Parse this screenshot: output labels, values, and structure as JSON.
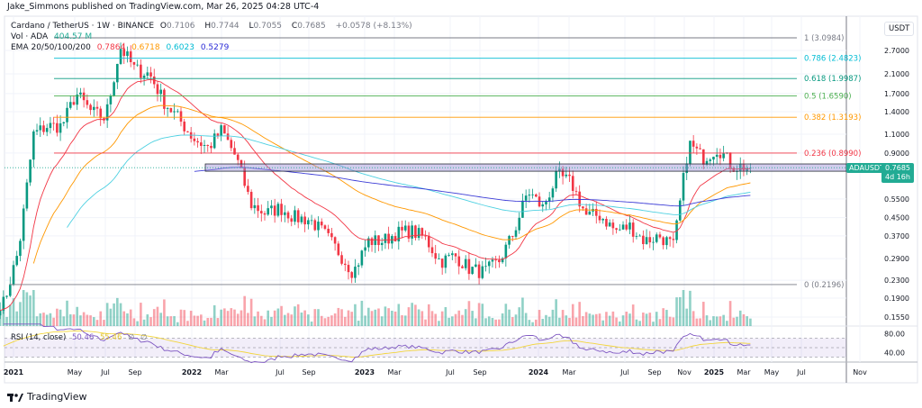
{
  "header": {
    "published": "Jake_Simmons published on TradingView.com, Mar 26, 2025 04:28 UTC-4"
  },
  "legend": {
    "symbol": "Cardano / TetherUS · 1W · BINANCE",
    "o_label": "O",
    "o": "0.7106",
    "h_label": "H",
    "h": "0.7744",
    "l_label": "L",
    "l": "0.7055",
    "c_label": "C",
    "c": "0.7685",
    "change": "+0.0578 (+8.13%)",
    "vol_label": "Vol · ADA",
    "vol": "404.57 M",
    "ema_label": "EMA 20/50/100/200",
    "ema20": "0.7864",
    "ema50": "0.6718",
    "ema100": "0.6023",
    "ema200": "0.5279",
    "rsi_label": "RSI (14, close)",
    "rsi": "50.46",
    "rsi_ma": "55.46",
    "rsi_extra1": "∅",
    "rsi_extra2": "∅"
  },
  "price_axis": {
    "unit": "USDT",
    "ticks": [
      "2.7000",
      "2.1000",
      "1.7000",
      "1.4000",
      "1.1000",
      "0.9000",
      "0.5500",
      "0.4500",
      "0.3700",
      "0.2900",
      "0.2300",
      "0.1900",
      "0.1550"
    ],
    "rsi_ticks": [
      "80.00",
      "40.00"
    ],
    "last_symbol": "ADAUSDT",
    "last_price": "0.7685",
    "countdown": "4d 16h"
  },
  "time_axis": [
    "2021",
    "May",
    "Jul",
    "Sep",
    "2022",
    "Mar",
    "Jul",
    "Sep",
    "2023",
    "Mar",
    "Jul",
    "Sep",
    "2024",
    "Mar",
    "Jul",
    "Sep",
    "Nov",
    "2025",
    "Mar",
    "May",
    "Jul",
    "Nov"
  ],
  "fib_levels": [
    {
      "label": "1 (3.0984)",
      "level": 1,
      "price": 3.0984,
      "color": "#787b86"
    },
    {
      "label": "0.786 (2.4823)",
      "level": 0.786,
      "price": 2.4823,
      "color": "#00bcd4"
    },
    {
      "label": "0.618 (1.9987)",
      "level": 0.618,
      "price": 1.9987,
      "color": "#089981"
    },
    {
      "label": "0.5 (1.6590)",
      "level": 0.5,
      "price": 1.659,
      "color": "#4caf50"
    },
    {
      "label": "0.382 (1.3193)",
      "level": 0.382,
      "price": 1.3193,
      "color": "#ff9800"
    },
    {
      "label": "0.236 (0.8990)",
      "level": 0.236,
      "price": 0.899,
      "color": "#f23645"
    },
    {
      "label": "0 (0.2196)",
      "level": 0,
      "price": 0.2196,
      "color": "#787b86"
    }
  ],
  "colors": {
    "up": "#089981",
    "down": "#f23645",
    "ema20": "#f23645",
    "ema50": "#ff9800",
    "ema100": "#4dd0e1",
    "ema200": "#3c3cd6",
    "rsi": "#7e57c2",
    "rsi_ma": "#f2d53c",
    "zone": "#9c8fd6"
  },
  "chart_data": {
    "type": "candlestick",
    "scale": "log",
    "interval": "1W",
    "zone": [
      0.74,
      0.8
    ],
    "approx_monthly_closes": [
      [
        "2020-12",
        0.18
      ],
      [
        "2021-01",
        0.32
      ],
      [
        "2021-02",
        1.1
      ],
      [
        "2021-03",
        1.2
      ],
      [
        "2021-04",
        1.2
      ],
      [
        "2021-05",
        1.7
      ],
      [
        "2021-06",
        1.4
      ],
      [
        "2021-07",
        1.3
      ],
      [
        "2021-08",
        2.8
      ],
      [
        "2021-09",
        2.2
      ],
      [
        "2021-10",
        2.1
      ],
      [
        "2021-11",
        1.55
      ],
      [
        "2021-12",
        1.3
      ],
      [
        "2022-01",
        1.05
      ],
      [
        "2022-02",
        0.95
      ],
      [
        "2022-03",
        1.15
      ],
      [
        "2022-04",
        0.85
      ],
      [
        "2022-05",
        0.52
      ],
      [
        "2022-06",
        0.47
      ],
      [
        "2022-07",
        0.5
      ],
      [
        "2022-08",
        0.45
      ],
      [
        "2022-09",
        0.44
      ],
      [
        "2022-10",
        0.38
      ],
      [
        "2022-11",
        0.31
      ],
      [
        "2022-12",
        0.25
      ],
      [
        "2023-01",
        0.35
      ],
      [
        "2023-02",
        0.35
      ],
      [
        "2023-03",
        0.38
      ],
      [
        "2023-04",
        0.39
      ],
      [
        "2023-05",
        0.36
      ],
      [
        "2023-06",
        0.28
      ],
      [
        "2023-07",
        0.3
      ],
      [
        "2023-08",
        0.26
      ],
      [
        "2023-09",
        0.25
      ],
      [
        "2023-10",
        0.28
      ],
      [
        "2023-11",
        0.38
      ],
      [
        "2023-12",
        0.6
      ],
      [
        "2024-01",
        0.5
      ],
      [
        "2024-02",
        0.71
      ],
      [
        "2024-03",
        0.65
      ],
      [
        "2024-04",
        0.46
      ],
      [
        "2024-05",
        0.46
      ],
      [
        "2024-06",
        0.39
      ],
      [
        "2024-07",
        0.41
      ],
      [
        "2024-08",
        0.35
      ],
      [
        "2024-09",
        0.37
      ],
      [
        "2024-10",
        0.33
      ],
      [
        "2024-11",
        1.0
      ],
      [
        "2024-12",
        0.85
      ],
      [
        "2025-01",
        0.95
      ],
      [
        "2025-02",
        0.78
      ],
      [
        "2025-03",
        0.7685
      ]
    ]
  }
}
